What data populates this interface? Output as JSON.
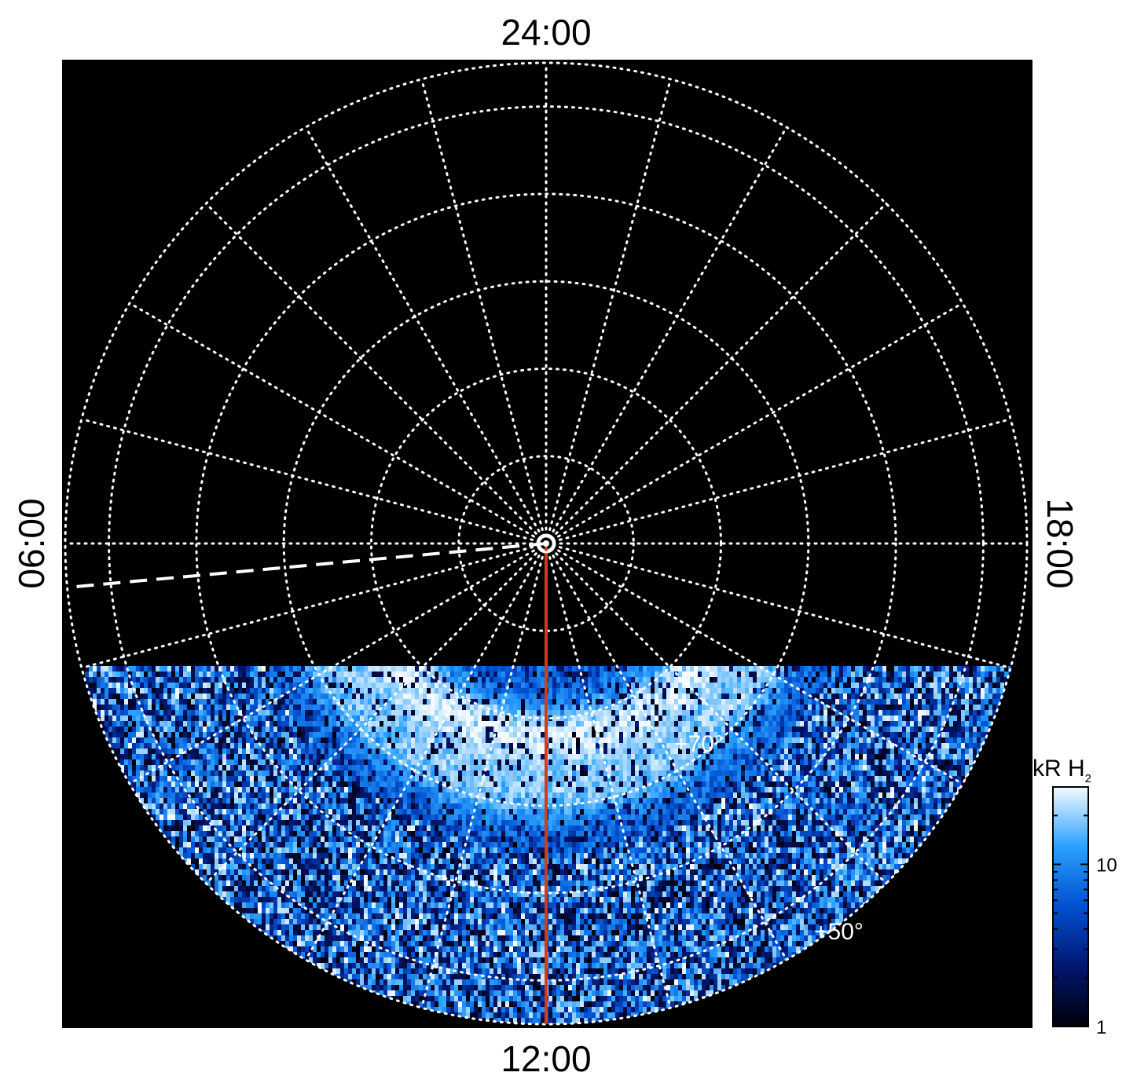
{
  "chart_data": {
    "type": "heatmap",
    "projection": "polar",
    "local_time_labels": {
      "top": "24:00",
      "bottom": "12:00",
      "left": "06:00",
      "right": "18:00"
    },
    "latitude_labels": [
      "+70°",
      "+50°"
    ],
    "latitude_grid_deg": [
      90,
      80,
      70,
      60,
      50,
      40
    ],
    "longitude_grid_hours": [
      0,
      1,
      2,
      3,
      4,
      5,
      6,
      7,
      8,
      9,
      10,
      11,
      12,
      13,
      14,
      15,
      16,
      17,
      18,
      19,
      20,
      21,
      22,
      23
    ],
    "outer_latitude_deg": 35,
    "grid": true,
    "colorbar": {
      "title": "kR H",
      "title_sub": "2",
      "scale": "log",
      "range": [
        1,
        30
      ],
      "ticks": [
        {
          "value": 1,
          "label": "1"
        },
        {
          "value": 10,
          "label": "10"
        }
      ],
      "placement": "right"
    },
    "coverage": "lower (dayside) portion of the disc, below about +42° colatitude band toward 12:00",
    "brightness_features": [
      {
        "description": "bright arc near +70°",
        "lat_deg": 68,
        "kR": 25
      },
      {
        "description": "fainter arc near +62°",
        "lat_deg": 62,
        "kR": 15
      }
    ],
    "overlays": [
      {
        "kind": "line",
        "color": "#d43a16",
        "style": "solid",
        "lt_hours": 12,
        "from_lat_deg": 90,
        "to_lat_deg": 35
      },
      {
        "kind": "line",
        "color": "#ffffff",
        "style": "dashed",
        "lt_hours": 6.35,
        "from_lat_deg": 90,
        "to_lat_deg": 35
      },
      {
        "kind": "marker",
        "color": "#ffffff",
        "style": "circle",
        "lat_deg": 90
      }
    ]
  }
}
